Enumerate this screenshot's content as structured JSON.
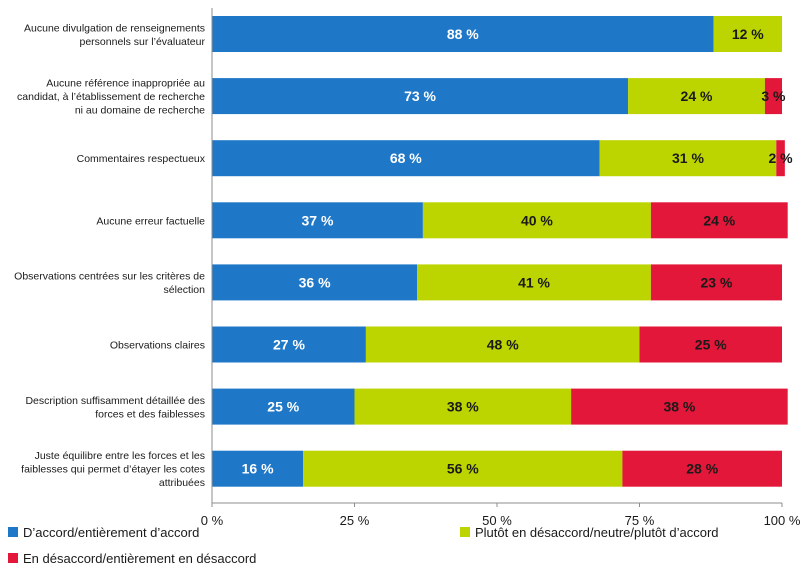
{
  "chart_data": {
    "type": "bar",
    "orientation": "horizontal",
    "stacked": true,
    "categories": [
      [
        "Aucune divulgation de renseignements",
        "personnels sur l’évaluateur"
      ],
      [
        "Aucune référence inappropriée au",
        "candidat, à l’établissement de recherche",
        "ni au domaine de recherche"
      ],
      [
        "Commentaires respectueux"
      ],
      [
        "Aucune erreur factuelle"
      ],
      [
        "Observations centrées sur les critères de",
        "sélection"
      ],
      [
        "Observations claires"
      ],
      [
        "Description suffisamment détaillée des",
        "forces et des faiblesses"
      ],
      [
        "Juste équilibre entre les forces et les",
        "faiblesses qui permet d’étayer les cotes",
        "attribuées"
      ]
    ],
    "series": [
      {
        "name": "D’accord/entièrement d’accord",
        "color": "#1f77c8",
        "text_color": "#ffffff",
        "values": [
          88,
          73,
          68,
          37,
          36,
          27,
          25,
          16
        ],
        "labels": [
          "88 %",
          "73 %",
          "68 %",
          "37 %",
          "36 %",
          "27 %",
          "25 %",
          "16 %"
        ]
      },
      {
        "name": "Plutôt en désaccord/neutre/plutôt d’accord",
        "color": "#bcd400",
        "text_color": "#1a1a1a",
        "values": [
          12,
          24,
          31,
          40,
          41,
          48,
          38,
          56
        ],
        "labels": [
          "12 %",
          "24 %",
          "31 %",
          "40 %",
          "41 %",
          "48 %",
          "38 %",
          "56 %"
        ]
      },
      {
        "name": "En désaccord/entièrement en désaccord",
        "color": "#e3173a",
        "text_color": "#1a1a1a",
        "values": [
          0,
          3,
          1.5,
          24,
          23,
          25,
          38,
          28
        ],
        "labels": [
          "",
          "3 %",
          "2 %",
          "24 %",
          "23 %",
          "25 %",
          "38 %",
          "28 %"
        ]
      }
    ],
    "xlim": [
      0,
      100
    ],
    "xticks": [
      "0 %",
      "25 %",
      "50 %",
      "75 %",
      "100 %"
    ],
    "legend_position": "bottom",
    "grid": false
  }
}
